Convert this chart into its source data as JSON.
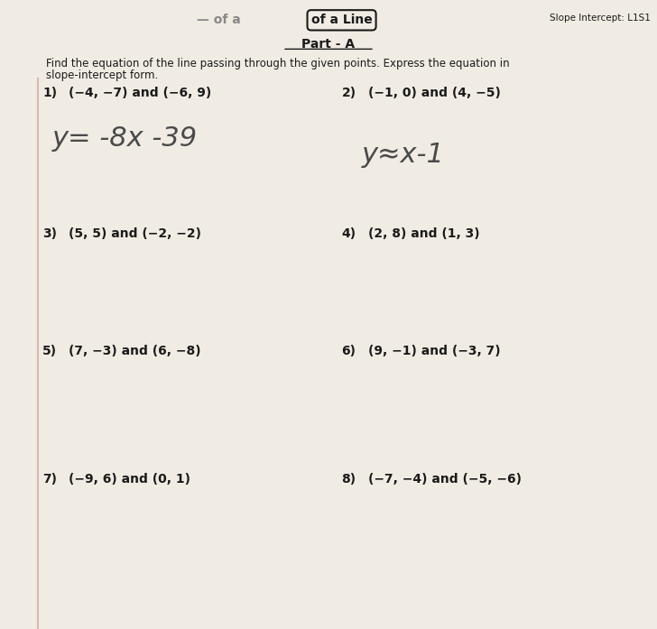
{
  "bg_color": "#d6cfc4",
  "paper_color": "#f0ece3",
  "header_right": "Slope Intercept: L1S1",
  "header_center_box": "of a Line",
  "part_label": "Part - A",
  "instructions_line1": "Find the equation of the line passing through the given points. Express the equation in",
  "instructions_line2": "slope-intercept form.",
  "problems": [
    {
      "num": "1)",
      "text": "(−4, −7) and (−6, 9)"
    },
    {
      "num": "2)",
      "text": "(−1, 0) and (4, −5)"
    },
    {
      "num": "3)",
      "text": "(5, 5) and (−2, −2)"
    },
    {
      "num": "4)",
      "text": "(2, 8) and (1, 3)"
    },
    {
      "num": "5)",
      "text": "(7, −3) and (6, −8)"
    },
    {
      "num": "6)",
      "text": "(9, −1) and (−3, 7)"
    },
    {
      "num": "7)",
      "text": "(−9, 6) and (0, 1)"
    },
    {
      "num": "8)",
      "text": "(−7, −4) and (−5, −6)"
    }
  ],
  "handwritten_1": "y= -8x -39",
  "handwritten_2": "y≈x-1",
  "text_color": "#1a1a1a",
  "handwritten_color": "#4a4a4a"
}
